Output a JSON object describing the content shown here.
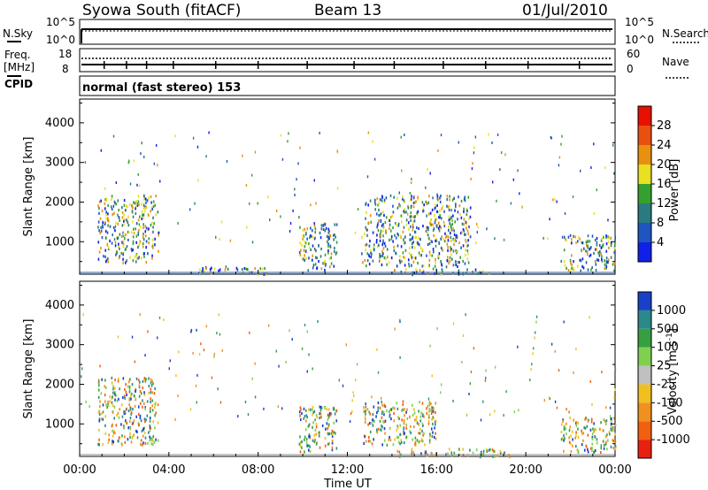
{
  "header": {
    "station": "Syowa South (fitACF)",
    "beam": "Beam 13",
    "date": "01/Jul/2010"
  },
  "noise_panel": {
    "left_label": "N.Sky",
    "right_label": "N.Search",
    "tick_top": "10^5",
    "tick_bottom": "10^0"
  },
  "freq_panel": {
    "left_label": "Freq.",
    "left_unit": "[MHz]",
    "left_ticks": [
      "18",
      "8"
    ],
    "right_label": "Nave",
    "right_ticks": [
      "60",
      "0"
    ],
    "cpid_label": "CPID",
    "cpid_value": "normal (fast stereo) 153"
  },
  "chart_data": [
    {
      "type": "heatmap",
      "name": "power",
      "ylabel": "Slant Range [km]",
      "xlabel": "",
      "xlim_hours": [
        0,
        24
      ],
      "ylim_km": [
        180,
        4600
      ],
      "yticks": [
        1000,
        2000,
        3000,
        4000
      ],
      "colorbar": {
        "label": "Power [dB]",
        "range": [
          0,
          32
        ],
        "ticks": [
          "4",
          "8",
          "12",
          "16",
          "20",
          "24",
          "28"
        ],
        "colors": [
          "#1020e8",
          "#1e55c0",
          "#2a7a80",
          "#34a030",
          "#e8e020",
          "#e89010",
          "#e85010",
          "#e81000"
        ]
      },
      "regions": [
        {
          "x": [
            0.8,
            3.5
          ],
          "y": [
            500,
            2200
          ],
          "level": 16
        },
        {
          "x": [
            5.0,
            8.5
          ],
          "y": [
            200,
            400
          ],
          "level": 8
        },
        {
          "x": [
            9.8,
            11.5
          ],
          "y": [
            300,
            1500
          ],
          "level": 10
        },
        {
          "x": [
            12.6,
            17.5
          ],
          "y": [
            400,
            2200
          ],
          "level": 14
        },
        {
          "x": [
            14.0,
            18.5
          ],
          "y": [
            200,
            350
          ],
          "level": 22
        },
        {
          "x": [
            21.5,
            24.0
          ],
          "y": [
            300,
            1200
          ],
          "level": 8
        }
      ]
    },
    {
      "type": "heatmap",
      "name": "velocity",
      "ylabel": "Slant Range [km]",
      "xlabel": "Time UT",
      "xlim_hours": [
        0,
        24
      ],
      "xticks": [
        "00:00",
        "04:00",
        "08:00",
        "12:00",
        "16:00",
        "20:00",
        "00:00"
      ],
      "ylim_km": [
        180,
        4600
      ],
      "yticks": [
        1000,
        2000,
        3000,
        4000
      ],
      "colorbar": {
        "label": "Velocity [m s^-1]",
        "ticks": [
          "1000",
          "500",
          "100",
          "25",
          "-25",
          "-100",
          "-500",
          "-1000"
        ],
        "colors": [
          "#1840c8",
          "#2a8a8a",
          "#36a040",
          "#80d050",
          "#c0c0c0",
          "#f0c020",
          "#f09020",
          "#f06010",
          "#e82010"
        ]
      },
      "regions": [
        {
          "x": [
            0.8,
            3.5
          ],
          "y": [
            500,
            2200
          ],
          "level": "green"
        },
        {
          "x": [
            9.8,
            11.5
          ],
          "y": [
            300,
            1500
          ],
          "level": "orange"
        },
        {
          "x": [
            12.6,
            16.0
          ],
          "y": [
            500,
            1600
          ],
          "level": "red-orange"
        },
        {
          "x": [
            14.0,
            19.5
          ],
          "y": [
            200,
            400
          ],
          "level": "orange"
        },
        {
          "x": [
            21.5,
            24.0
          ],
          "y": [
            300,
            1200
          ],
          "level": "blue-green"
        }
      ]
    }
  ]
}
